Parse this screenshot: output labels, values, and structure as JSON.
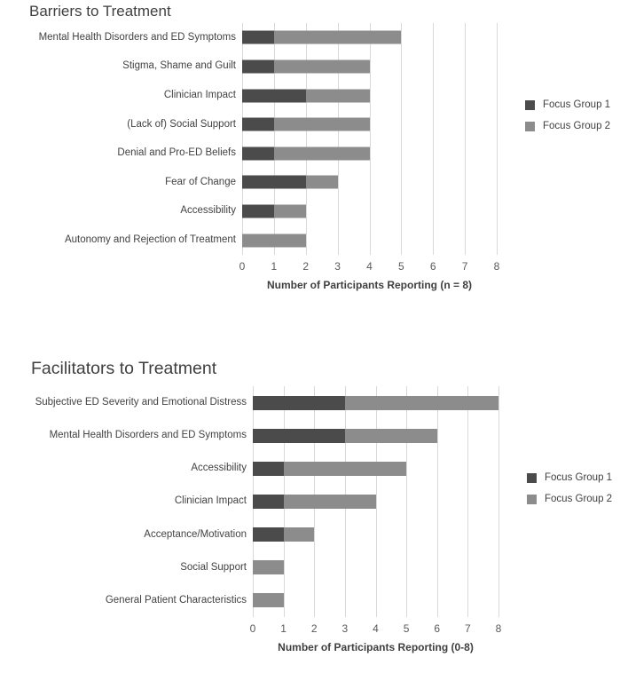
{
  "figure": {
    "background": "#ffffff"
  },
  "colors": {
    "focus_group_1": "#4b4b4b",
    "focus_group_2": "#8c8c8c",
    "gridline": "#d9d9d9",
    "title_text": "#3f3f3f",
    "tick_text": "#595959"
  },
  "chart_data": [
    {
      "type": "bar",
      "orientation": "horizontal",
      "stacked": true,
      "title": "Barriers to Treatment",
      "xlabel": "Number of Participants Reporting (n = 8)",
      "xlim": [
        0,
        8
      ],
      "ticks": [
        0,
        1,
        2,
        3,
        4,
        5,
        6,
        7,
        8
      ],
      "grid": true,
      "legend_position": "right",
      "categories": [
        "Mental Health Disorders and ED Symptoms",
        "Stigma, Shame and Guilt",
        "Clinician Impact",
        "(Lack of) Social Support",
        "Denial and Pro-ED Beliefs",
        "Fear of Change",
        "Accessibility",
        "Autonomy and Rejection of Treatment"
      ],
      "series": [
        {
          "name": "Focus Group 1",
          "color": "#4b4b4b",
          "values": [
            1,
            1,
            2,
            1,
            1,
            2,
            1,
            0
          ]
        },
        {
          "name": "Focus Group 2",
          "color": "#8c8c8c",
          "values": [
            4,
            3,
            2,
            3,
            3,
            1,
            1,
            2
          ]
        }
      ]
    },
    {
      "type": "bar",
      "orientation": "horizontal",
      "stacked": true,
      "title": "Facilitators to Treatment",
      "xlabel": "Number of Participants Reporting (0-8)",
      "xlim": [
        0,
        8
      ],
      "ticks": [
        0,
        1,
        2,
        3,
        4,
        5,
        6,
        7,
        8
      ],
      "grid": true,
      "legend_position": "right",
      "categories": [
        "Subjective ED Severity and Emotional Distress",
        "Mental Health Disorders and ED Symptoms",
        "Accessibility",
        "Clinician Impact",
        "Acceptance/Motivation",
        "Social Support",
        "General Patient Characteristics"
      ],
      "series": [
        {
          "name": "Focus Group 1",
          "color": "#4b4b4b",
          "values": [
            3,
            3,
            1,
            1,
            1,
            0,
            0
          ]
        },
        {
          "name": "Focus Group 2",
          "color": "#8c8c8c",
          "values": [
            5,
            3,
            4,
            3,
            1,
            1,
            1
          ]
        }
      ]
    }
  ]
}
